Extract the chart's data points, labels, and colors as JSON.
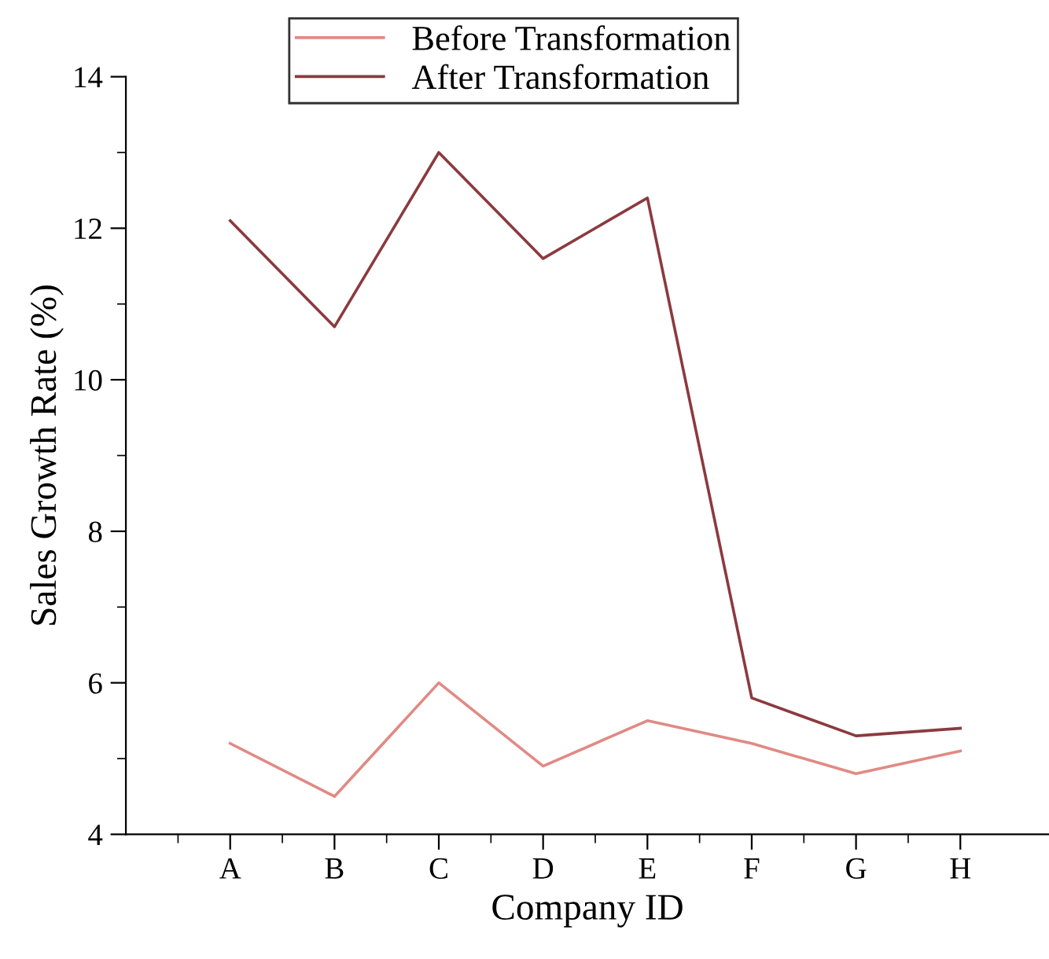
{
  "chart_data": {
    "type": "line",
    "xlabel": "Company ID",
    "ylabel": "Sales Growth Rate (%)",
    "categories": [
      "A",
      "B",
      "C",
      "D",
      "E",
      "F",
      "G",
      "H"
    ],
    "series": [
      {
        "name": "Before Transformation",
        "color": "#e08a84",
        "values": [
          5.2,
          4.5,
          6.0,
          4.9,
          5.5,
          5.2,
          4.8,
          5.1
        ]
      },
      {
        "name": "After Transformation",
        "color": "#8b3a3f",
        "values": [
          12.1,
          10.7,
          13.0,
          11.6,
          12.4,
          5.8,
          5.3,
          5.4
        ]
      }
    ],
    "ylim": [
      4,
      14
    ],
    "yticks": [
      4,
      6,
      8,
      10,
      12,
      14
    ],
    "grid": false,
    "legend": "top",
    "marker": "none",
    "line_style": "solid"
  }
}
